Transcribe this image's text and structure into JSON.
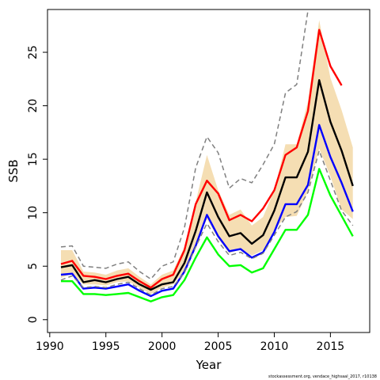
{
  "chart_data": {
    "type": "line",
    "title": "",
    "xlabel": "Year",
    "ylabel": "SSB",
    "xlim": [
      1989.8,
      2018.5
    ],
    "ylim": [
      -1.2,
      29.0
    ],
    "xticks": [
      1990,
      1995,
      2000,
      2005,
      2010,
      2015
    ],
    "yticks": [
      0,
      5,
      10,
      15,
      20,
      25
    ],
    "grid": false,
    "legend": "none",
    "x": [
      1991,
      1992,
      1993,
      1994,
      1995,
      1996,
      1997,
      1998,
      1999,
      2000,
      2001,
      2002,
      2003,
      2004,
      2005,
      2006,
      2007,
      2008,
      2009,
      2010,
      2011,
      2012,
      2013,
      2014,
      2015,
      2016,
      2017
    ],
    "band": {
      "color": "#f5deb3",
      "lower": [
        3.9,
        4.3,
        3.3,
        3.3,
        3.2,
        3.5,
        3.6,
        3.0,
        2.4,
        3.0,
        3.3,
        4.6,
        7.1,
        9.4,
        7.6,
        6.2,
        6.6,
        6.0,
        6.5,
        8.4,
        9.6,
        9.7,
        12.0,
        16.0,
        13.4,
        10.3,
        9.4
      ],
      "upper": [
        6.5,
        6.5,
        4.5,
        4.4,
        4.2,
        4.6,
        4.8,
        4.0,
        3.3,
        4.2,
        4.6,
        6.8,
        11.0,
        15.4,
        12.1,
        9.8,
        10.3,
        8.8,
        9.6,
        12.1,
        16.4,
        16.4,
        20.4,
        28.0,
        22.6,
        19.6,
        16.1
      ]
    },
    "series": [
      {
        "color": "#ff0000",
        "dash": false,
        "values": [
          5.2,
          5.5,
          4.1,
          4.0,
          3.8,
          4.1,
          4.3,
          3.6,
          3.0,
          3.8,
          4.2,
          6.5,
          10.8,
          13.0,
          11.8,
          9.3,
          9.8,
          9.2,
          10.4,
          12.1,
          15.4,
          16.1,
          19.5,
          27.1,
          23.7,
          21.9,
          null
        ]
      },
      {
        "color": "#000000",
        "dash": false,
        "values": [
          4.9,
          5.1,
          3.5,
          3.7,
          3.5,
          3.8,
          4.0,
          3.3,
          2.8,
          3.3,
          3.5,
          5.3,
          8.3,
          11.9,
          9.6,
          7.8,
          8.1,
          7.1,
          7.9,
          10.2,
          13.3,
          13.3,
          15.7,
          22.4,
          18.5,
          15.8,
          12.5
        ]
      },
      {
        "color": "#0000ff",
        "dash": false,
        "values": [
          4.2,
          4.3,
          2.9,
          3.0,
          2.9,
          3.1,
          3.3,
          2.7,
          2.2,
          2.7,
          2.9,
          4.5,
          6.9,
          9.8,
          7.8,
          6.4,
          6.6,
          5.8,
          6.3,
          8.2,
          10.8,
          10.8,
          12.6,
          18.2,
          15.2,
          12.8,
          10.1
        ]
      },
      {
        "color": "#00ff00",
        "dash": false,
        "values": [
          3.6,
          3.6,
          2.4,
          2.4,
          2.3,
          2.4,
          2.5,
          2.1,
          1.7,
          2.1,
          2.3,
          3.7,
          5.8,
          7.7,
          6.1,
          5.0,
          5.1,
          4.4,
          4.8,
          6.6,
          8.4,
          8.4,
          9.8,
          14.1,
          11.6,
          9.7,
          7.8
        ]
      },
      {
        "color": "#808080",
        "dash": true,
        "values": [
          6.8,
          6.9,
          5.0,
          4.9,
          4.8,
          5.2,
          5.4,
          4.5,
          3.8,
          5.0,
          5.4,
          8.6,
          14.2,
          17.1,
          15.6,
          12.3,
          13.2,
          12.8,
          14.5,
          16.4,
          21.2,
          22.0,
          28.9,
          null,
          null,
          null,
          null
        ]
      },
      {
        "color": "#808080",
        "dash": true,
        "values": [
          3.7,
          4.1,
          3.0,
          3.1,
          3.0,
          3.3,
          3.5,
          2.9,
          2.3,
          2.9,
          3.1,
          4.4,
          6.8,
          9.0,
          7.3,
          6.0,
          6.3,
          5.7,
          6.2,
          7.9,
          9.6,
          10.1,
          11.9,
          15.8,
          13.0,
          10.2,
          8.8
        ]
      }
    ]
  },
  "footer": "stockassessment.org, vendace_highsaal_2017, r10138"
}
